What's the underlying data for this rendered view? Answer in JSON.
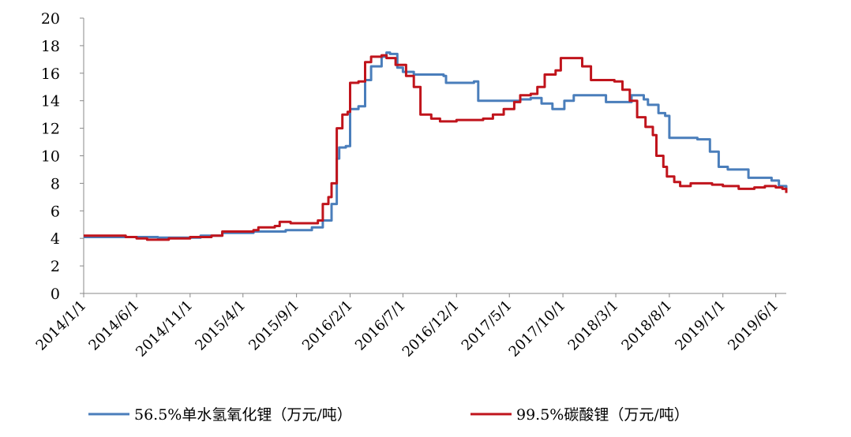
{
  "chart_data": {
    "type": "line",
    "title": "",
    "xlabel": "",
    "ylabel": "",
    "ylim": [
      0,
      20
    ],
    "yticks": [
      0,
      2,
      4,
      6,
      8,
      10,
      12,
      14,
      16,
      18,
      20
    ],
    "xlim": [
      "2014-01-01",
      "2019-07-01"
    ],
    "xtick_labels": [
      "2014/1/1",
      "2014/6/1",
      "2014/11/1",
      "2015/4/1",
      "2015/9/1",
      "2016/2/1",
      "2016/7/1",
      "2016/12/1",
      "2017/5/1",
      "2017/10/1",
      "2018/3/1",
      "2018/8/1",
      "2019/1/1",
      "2019/6/1"
    ],
    "grid": false,
    "legend_position": "bottom",
    "series": [
      {
        "name": "56.5%单水氢氧化锂（万元/吨）",
        "color": "#4a7ebb",
        "points": [
          [
            "2014-01-01",
            4.1
          ],
          [
            "2014-08-01",
            4.05
          ],
          [
            "2014-12-01",
            4.2
          ],
          [
            "2015-02-01",
            4.4
          ],
          [
            "2015-05-01",
            4.5
          ],
          [
            "2015-08-01",
            4.6
          ],
          [
            "2015-10-15",
            4.8
          ],
          [
            "2015-11-15",
            5.3
          ],
          [
            "2015-12-10",
            6.5
          ],
          [
            "2015-12-25",
            9.8
          ],
          [
            "2016-01-01",
            10.6
          ],
          [
            "2016-01-20",
            10.7
          ],
          [
            "2016-02-01",
            13.4
          ],
          [
            "2016-02-25",
            13.6
          ],
          [
            "2016-03-15",
            15.5
          ],
          [
            "2016-04-01",
            16.5
          ],
          [
            "2016-05-01",
            17.2
          ],
          [
            "2016-05-15",
            17.5
          ],
          [
            "2016-05-25",
            17.4
          ],
          [
            "2016-06-15",
            16.4
          ],
          [
            "2016-07-01",
            16.1
          ],
          [
            "2016-08-01",
            15.9
          ],
          [
            "2016-10-25",
            15.8
          ],
          [
            "2016-11-01",
            15.3
          ],
          [
            "2017-01-20",
            15.4
          ],
          [
            "2017-02-01",
            14.0
          ],
          [
            "2017-06-01",
            14.1
          ],
          [
            "2017-07-01",
            14.2
          ],
          [
            "2017-08-01",
            13.8
          ],
          [
            "2017-09-01",
            13.4
          ],
          [
            "2017-09-25",
            13.4
          ],
          [
            "2017-10-05",
            14.0
          ],
          [
            "2017-11-01",
            14.4
          ],
          [
            "2018-01-15",
            14.4
          ],
          [
            "2018-02-01",
            13.9
          ],
          [
            "2018-04-01",
            13.9
          ],
          [
            "2018-04-15",
            14.4
          ],
          [
            "2018-05-20",
            14.1
          ],
          [
            "2018-06-01",
            13.7
          ],
          [
            "2018-07-01",
            13.1
          ],
          [
            "2018-07-20",
            12.9
          ],
          [
            "2018-08-01",
            11.3
          ],
          [
            "2018-10-20",
            11.2
          ],
          [
            "2018-11-25",
            10.3
          ],
          [
            "2018-12-20",
            9.2
          ],
          [
            "2019-01-15",
            9.0
          ],
          [
            "2019-03-01",
            9.0
          ],
          [
            "2019-03-15",
            8.4
          ],
          [
            "2019-05-20",
            8.2
          ],
          [
            "2019-06-10",
            7.8
          ],
          [
            "2019-07-01",
            7.6
          ]
        ]
      },
      {
        "name": "99.5%碳酸锂（万元/吨）",
        "color": "#c0141c",
        "points": [
          [
            "2014-01-01",
            4.2
          ],
          [
            "2014-05-01",
            4.1
          ],
          [
            "2014-06-01",
            4.0
          ],
          [
            "2014-07-01",
            3.9
          ],
          [
            "2014-09-01",
            4.0
          ],
          [
            "2014-11-01",
            4.1
          ],
          [
            "2015-01-01",
            4.2
          ],
          [
            "2015-02-01",
            4.5
          ],
          [
            "2015-05-01",
            4.6
          ],
          [
            "2015-05-15",
            4.8
          ],
          [
            "2015-07-01",
            4.9
          ],
          [
            "2015-07-15",
            5.2
          ],
          [
            "2015-08-15",
            5.1
          ],
          [
            "2015-11-01",
            5.3
          ],
          [
            "2015-11-15",
            6.5
          ],
          [
            "2015-12-01",
            7.0
          ],
          [
            "2015-12-10",
            8.0
          ],
          [
            "2015-12-25",
            12.0
          ],
          [
            "2016-01-10",
            13.0
          ],
          [
            "2016-01-25",
            13.2
          ],
          [
            "2016-02-01",
            15.3
          ],
          [
            "2016-02-25",
            15.4
          ],
          [
            "2016-03-15",
            16.8
          ],
          [
            "2016-04-01",
            17.2
          ],
          [
            "2016-05-01",
            17.3
          ],
          [
            "2016-05-15",
            17.1
          ],
          [
            "2016-06-10",
            16.6
          ],
          [
            "2016-07-10",
            15.8
          ],
          [
            "2016-08-01",
            15.0
          ],
          [
            "2016-08-20",
            13.0
          ],
          [
            "2016-09-20",
            12.7
          ],
          [
            "2016-10-15",
            12.5
          ],
          [
            "2016-12-01",
            12.6
          ],
          [
            "2017-02-15",
            12.7
          ],
          [
            "2017-03-15",
            13.0
          ],
          [
            "2017-04-15",
            13.4
          ],
          [
            "2017-05-15",
            13.9
          ],
          [
            "2017-06-01",
            14.4
          ],
          [
            "2017-07-01",
            14.5
          ],
          [
            "2017-07-20",
            15.0
          ],
          [
            "2017-08-10",
            15.9
          ],
          [
            "2017-09-10",
            16.2
          ],
          [
            "2017-09-25",
            17.1
          ],
          [
            "2017-11-01",
            17.1
          ],
          [
            "2017-11-25",
            16.5
          ],
          [
            "2017-12-20",
            15.5
          ],
          [
            "2018-02-25",
            15.4
          ],
          [
            "2018-03-20",
            14.8
          ],
          [
            "2018-04-10",
            14.0
          ],
          [
            "2018-05-01",
            12.8
          ],
          [
            "2018-05-25",
            12.1
          ],
          [
            "2018-06-15",
            11.5
          ],
          [
            "2018-06-25",
            10.0
          ],
          [
            "2018-07-15",
            9.2
          ],
          [
            "2018-07-25",
            8.5
          ],
          [
            "2018-08-15",
            8.1
          ],
          [
            "2018-09-01",
            7.8
          ],
          [
            "2018-10-01",
            8.0
          ],
          [
            "2018-12-01",
            7.9
          ],
          [
            "2019-01-01",
            7.8
          ],
          [
            "2019-02-15",
            7.6
          ],
          [
            "2019-04-01",
            7.7
          ],
          [
            "2019-05-01",
            7.8
          ],
          [
            "2019-06-01",
            7.7
          ],
          [
            "2019-06-20",
            7.6
          ],
          [
            "2019-07-01",
            7.3
          ]
        ]
      }
    ]
  }
}
